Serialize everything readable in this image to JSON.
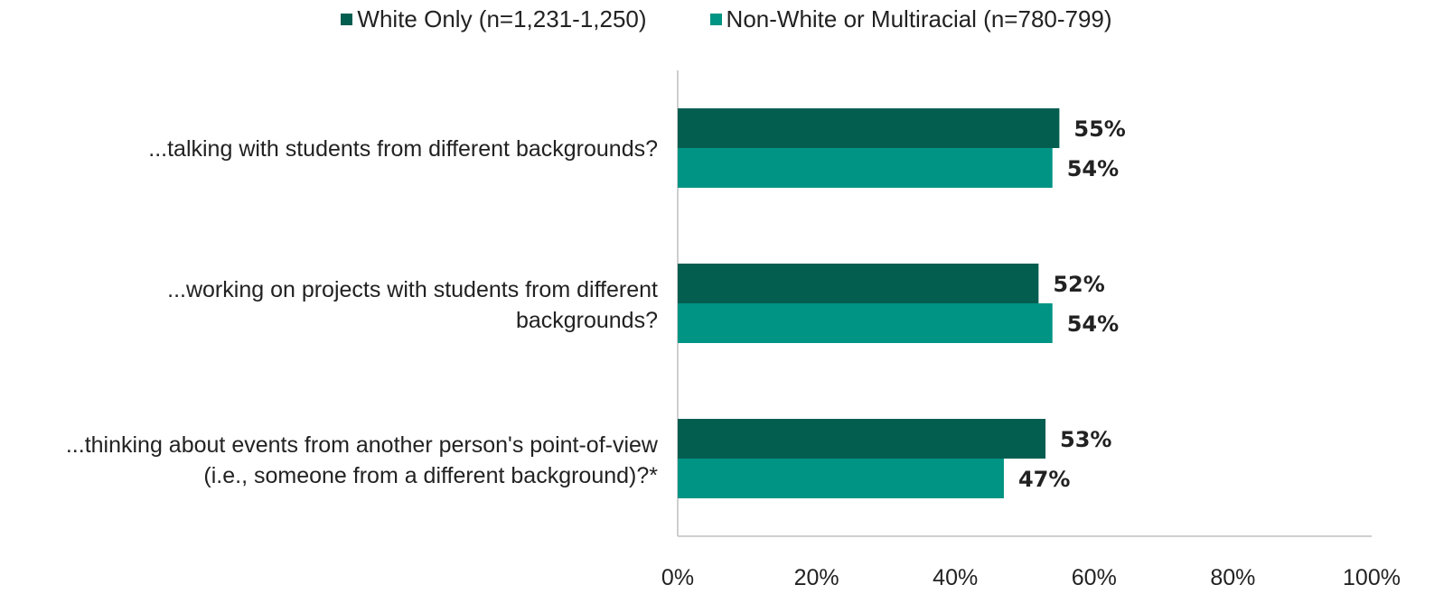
{
  "chart_data": {
    "type": "bar",
    "orientation": "horizontal",
    "categories": [
      [
        "...talking with students from different backgrounds?"
      ],
      [
        "...working on projects with students from different",
        "backgrounds?"
      ],
      [
        "...thinking about events from another person's point-of-view",
        "(i.e., someone from a different background)?*"
      ]
    ],
    "series": [
      {
        "name": "White Only (n=1,231-1,250)",
        "color": "#035e50",
        "values": [
          55,
          52,
          53
        ],
        "labels": [
          "55%",
          "52%",
          "53%"
        ]
      },
      {
        "name": "Non-White or Multiracial (n=780-799)",
        "color": "#009484",
        "values": [
          54,
          54,
          47
        ],
        "labels": [
          "54%",
          "54%",
          "47%"
        ]
      }
    ],
    "xlim": [
      0,
      100
    ],
    "xticks": [
      "0%",
      "20%",
      "40%",
      "60%",
      "80%",
      "100%"
    ],
    "legend_position": "top",
    "grid": false
  }
}
